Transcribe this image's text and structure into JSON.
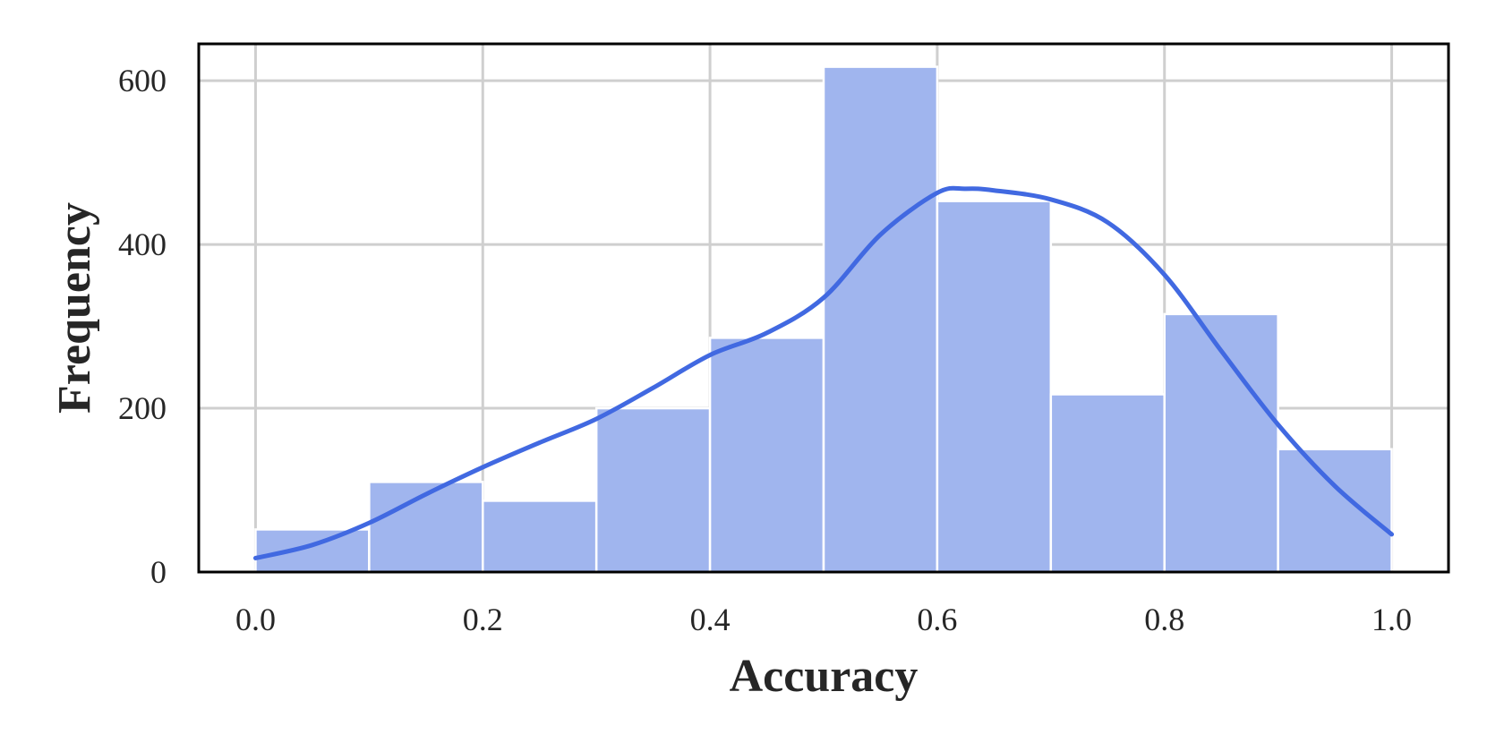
{
  "chart_data": {
    "type": "bar",
    "subtype": "histogram-with-kde",
    "xlabel": "Accuracy",
    "ylabel": "Frequency",
    "xlim": [
      -0.05,
      1.05
    ],
    "ylim": [
      0,
      645
    ],
    "xticks": [
      0.0,
      0.2,
      0.4,
      0.6,
      0.8,
      1.0
    ],
    "xtick_labels": [
      "0.0",
      "0.2",
      "0.4",
      "0.6",
      "0.8",
      "1.0"
    ],
    "yticks": [
      0,
      200,
      400,
      600
    ],
    "ytick_labels": [
      "0",
      "200",
      "400",
      "600"
    ],
    "grid": true,
    "legend": "none",
    "bins": [
      {
        "start": 0.0,
        "end": 0.1,
        "count": 52
      },
      {
        "start": 0.1,
        "end": 0.2,
        "count": 110
      },
      {
        "start": 0.2,
        "end": 0.3,
        "count": 87
      },
      {
        "start": 0.3,
        "end": 0.4,
        "count": 200
      },
      {
        "start": 0.4,
        "end": 0.5,
        "count": 286
      },
      {
        "start": 0.5,
        "end": 0.6,
        "count": 617
      },
      {
        "start": 0.6,
        "end": 0.7,
        "count": 453
      },
      {
        "start": 0.7,
        "end": 0.8,
        "count": 217
      },
      {
        "start": 0.8,
        "end": 0.9,
        "count": 315
      },
      {
        "start": 0.9,
        "end": 1.0,
        "count": 150
      }
    ],
    "kde": {
      "x": [
        0.0,
        0.05,
        0.1,
        0.15,
        0.2,
        0.25,
        0.3,
        0.35,
        0.4,
        0.45,
        0.5,
        0.55,
        0.6,
        0.625,
        0.65,
        0.7,
        0.75,
        0.8,
        0.85,
        0.9,
        0.95,
        1.0
      ],
      "y": [
        17,
        33,
        60,
        95,
        128,
        158,
        187,
        225,
        265,
        292,
        335,
        412,
        463,
        468,
        466,
        455,
        427,
        363,
        270,
        180,
        105,
        46
      ]
    },
    "colors": {
      "bar_fill": "#a0b5ee",
      "bar_edge": "#ffffff",
      "kde_line": "#4169e1",
      "grid": "#cfcfcf",
      "frame": "#000000"
    }
  }
}
